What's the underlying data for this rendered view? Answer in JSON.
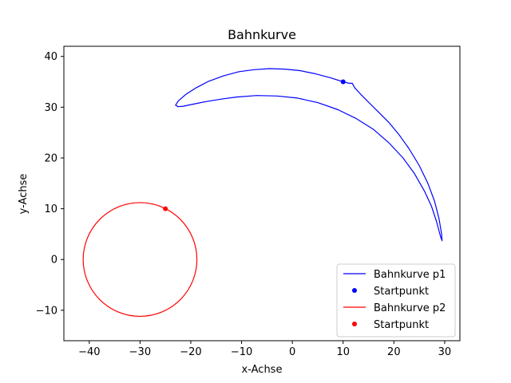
{
  "chart_data": {
    "type": "line",
    "title": "Bahnkurve",
    "xlabel": "x-Achse",
    "ylabel": "y-Achse",
    "xlim": [
      -45,
      33
    ],
    "ylim": [
      -16,
      42
    ],
    "x_ticks": [
      -40,
      -30,
      -20,
      -10,
      0,
      10,
      20,
      30
    ],
    "y_ticks": [
      -10,
      0,
      10,
      20,
      30,
      40
    ],
    "x_tick_labels": [
      "−40",
      "−30",
      "−20",
      "−10",
      "0",
      "10",
      "20",
      "30"
    ],
    "y_tick_labels": [
      "−10",
      "0",
      "10",
      "20",
      "30",
      "40"
    ],
    "grid": false,
    "legend_position": "lower-right",
    "series": [
      {
        "name": "Bahnkurve p1",
        "kind": "line",
        "color": "#0000ff",
        "points": [
          [
            10.0,
            35.0
          ],
          [
            11.2,
            34.7
          ],
          [
            11.8,
            34.7
          ],
          [
            12.3,
            33.8
          ],
          [
            13.5,
            32.5
          ],
          [
            15.0,
            31.0
          ],
          [
            17.0,
            29.0
          ],
          [
            19.0,
            27.0
          ],
          [
            21.0,
            24.6
          ],
          [
            23.0,
            21.8
          ],
          [
            25.0,
            18.5
          ],
          [
            26.7,
            15.0
          ],
          [
            28.0,
            11.5
          ],
          [
            28.9,
            8.0
          ],
          [
            29.4,
            5.0
          ],
          [
            29.5,
            3.7
          ],
          [
            29.2,
            4.5
          ],
          [
            28.4,
            7.5
          ],
          [
            27.4,
            10.5
          ],
          [
            26.0,
            13.5
          ],
          [
            24.0,
            17.0
          ],
          [
            21.8,
            20.0
          ],
          [
            19.0,
            23.0
          ],
          [
            16.0,
            25.6
          ],
          [
            12.5,
            27.8
          ],
          [
            9.0,
            29.5
          ],
          [
            5.0,
            30.9
          ],
          [
            1.0,
            31.8
          ],
          [
            -3.0,
            32.2
          ],
          [
            -7.0,
            32.3
          ],
          [
            -11.0,
            32.0
          ],
          [
            -14.0,
            31.6
          ],
          [
            -17.0,
            31.1
          ],
          [
            -19.5,
            30.6
          ],
          [
            -21.5,
            30.2
          ],
          [
            -22.5,
            30.1
          ],
          [
            -23.0,
            30.4
          ],
          [
            -22.5,
            31.2
          ],
          [
            -21.0,
            32.5
          ],
          [
            -19.0,
            33.8
          ],
          [
            -16.5,
            35.1
          ],
          [
            -13.5,
            36.2
          ],
          [
            -10.5,
            37.0
          ],
          [
            -7.5,
            37.4
          ],
          [
            -4.5,
            37.6
          ],
          [
            -1.5,
            37.5
          ],
          [
            1.5,
            37.2
          ],
          [
            4.5,
            36.6
          ],
          [
            7.5,
            35.8
          ],
          [
            10.0,
            35.0
          ]
        ]
      },
      {
        "name": "Startpunkt",
        "kind": "marker",
        "color": "#0000ff",
        "points": [
          [
            10.0,
            35.0
          ]
        ]
      },
      {
        "name": "Bahnkurve p2",
        "kind": "circle",
        "color": "#ff0000",
        "center": [
          -30.0,
          0.0
        ],
        "radius": 11.2
      },
      {
        "name": "Startpunkt",
        "kind": "marker",
        "color": "#ff0000",
        "points": [
          [
            -25.0,
            10.0
          ]
        ]
      }
    ]
  }
}
